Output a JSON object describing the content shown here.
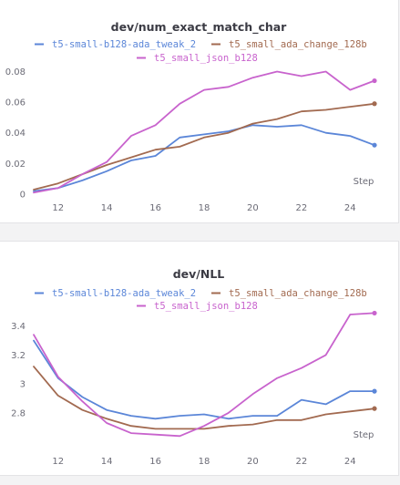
{
  "chart_data": [
    {
      "type": "line",
      "title": "dev/num_exact_match_char",
      "xlabel": "Step",
      "ylabel": "",
      "xlim": [
        11,
        25
      ],
      "ylim": [
        0,
        0.088
      ],
      "x_ticks": [
        12,
        14,
        16,
        18,
        20,
        22,
        24
      ],
      "y_ticks": [
        0,
        0.02,
        0.04,
        0.06,
        0.08
      ],
      "y_tick_labels": [
        "0",
        "0.02",
        "0.04",
        "0.06",
        "0.08"
      ],
      "grid": false,
      "legend_position": "top",
      "x": [
        11,
        12,
        13,
        14,
        15,
        16,
        17,
        18,
        19,
        20,
        21,
        22,
        23,
        24,
        25
      ],
      "series": [
        {
          "name": "t5-small-b128-ada_tweak_2",
          "color": "#5b86d8",
          "values": [
            0.002,
            0.004,
            0.009,
            0.015,
            0.022,
            0.025,
            0.037,
            0.039,
            0.041,
            0.045,
            0.044,
            0.045,
            0.04,
            0.038,
            0.032
          ]
        },
        {
          "name": "t5_small_ada_change_128b",
          "color": "#a26a50",
          "values": [
            0.003,
            0.007,
            0.013,
            0.019,
            0.024,
            0.029,
            0.031,
            0.037,
            0.04,
            0.046,
            0.049,
            0.054,
            0.055,
            0.057,
            0.059
          ]
        },
        {
          "name": "t5_small_json_b128",
          "color": "#c863cd",
          "values": [
            0.001,
            0.004,
            0.013,
            0.021,
            0.038,
            0.045,
            0.059,
            0.068,
            0.07,
            0.076,
            0.08,
            0.077,
            0.08,
            0.068,
            0.074
          ]
        }
      ]
    },
    {
      "type": "line",
      "title": "dev/NLL",
      "xlabel": "Step",
      "ylabel": "",
      "xlim": [
        11,
        25
      ],
      "ylim": [
        2.56,
        3.48
      ],
      "x_ticks": [
        12,
        14,
        16,
        18,
        20,
        22,
        24
      ],
      "y_ticks": [
        2.8,
        3.0,
        3.2,
        3.4
      ],
      "y_tick_labels": [
        "2.8",
        "3",
        "3.2",
        "3.4"
      ],
      "grid": false,
      "legend_position": "top",
      "x": [
        11,
        12,
        13,
        14,
        15,
        16,
        17,
        18,
        19,
        20,
        21,
        22,
        23,
        24,
        25
      ],
      "series": [
        {
          "name": "t5-small-b128-ada_tweak_2",
          "color": "#5b86d8",
          "values": [
            3.3,
            3.04,
            2.91,
            2.82,
            2.78,
            2.76,
            2.78,
            2.79,
            2.76,
            2.78,
            2.78,
            2.89,
            2.86,
            2.95,
            2.95
          ]
        },
        {
          "name": "t5_small_ada_change_128b",
          "color": "#a26a50",
          "values": [
            3.12,
            2.92,
            2.82,
            2.76,
            2.71,
            2.69,
            2.69,
            2.69,
            2.71,
            2.72,
            2.75,
            2.75,
            2.79,
            2.81,
            2.83
          ]
        },
        {
          "name": "t5_small_json_b128",
          "color": "#c863cd",
          "values": [
            3.34,
            3.05,
            2.88,
            2.73,
            2.66,
            2.65,
            2.64,
            2.71,
            2.8,
            2.93,
            3.04,
            3.11,
            3.2,
            3.48,
            3.49
          ]
        }
      ]
    }
  ]
}
